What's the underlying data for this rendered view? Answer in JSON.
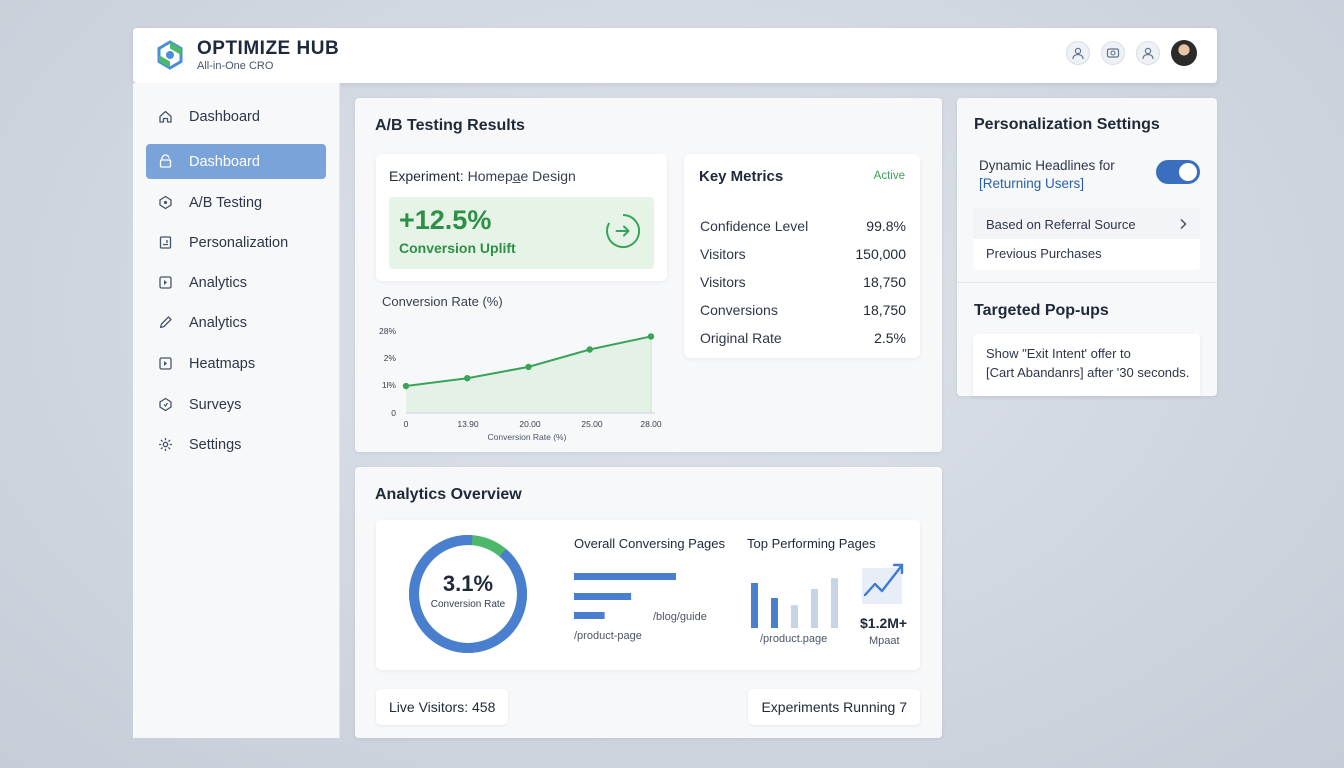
{
  "app": {
    "title": "OPTIMIZE HUB",
    "subtitle": "All-in-One CRO",
    "header_icons": [
      "user-icon",
      "dollar-icon",
      "profile-icon",
      "avatar"
    ]
  },
  "sidebar": {
    "items": [
      {
        "label": "Dashboard",
        "icon": "home-icon",
        "active": false
      },
      {
        "label": "Dashboard",
        "icon": "dashboard-icon",
        "active": true
      },
      {
        "label": "A/B Testing",
        "icon": "ab-testing-icon",
        "active": false
      },
      {
        "label": "Personalization",
        "icon": "personalization-icon",
        "active": false
      },
      {
        "label": "Analytics",
        "icon": "analytics-icon",
        "active": false
      },
      {
        "label": "Analytics",
        "icon": "pencil-icon",
        "active": false
      },
      {
        "label": "Heatmaps",
        "icon": "heatmap-icon",
        "active": false
      },
      {
        "label": "Surveys",
        "icon": "survey-icon",
        "active": false
      },
      {
        "label": "Settings",
        "icon": "gear-icon",
        "active": false
      }
    ]
  },
  "ab_testing": {
    "title": "A/B Testing Results",
    "experiment_label": "Experiment:",
    "experiment_name": "Homepa̲e Design",
    "uplift_value": "+12.5%",
    "uplift_label": "Conversion Uplift",
    "key_metrics": {
      "title": "Key Metrics",
      "status": "Active",
      "rows": [
        {
          "label": "Confidence Level",
          "value": "99.8%"
        },
        {
          "label": "Visitors",
          "value": "150,000"
        },
        {
          "label": "Visitors",
          "value": "18,750"
        },
        {
          "label": "Conversions",
          "value": "18,750"
        },
        {
          "label": "Original Rate",
          "value": "2.5%"
        }
      ]
    }
  },
  "chart_data": {
    "type": "line",
    "title": "Conversion Rate (%)",
    "xlabel": "Conversion Rate (%)",
    "ylabel": "",
    "x_tick_labels": [
      "0",
      "13.90",
      "20.00",
      "25.00",
      "28.00"
    ],
    "y_tick_labels": [
      "0",
      "1l%",
      "2%",
      "28%"
    ],
    "series": [
      {
        "values": [
          0.31,
          0.4,
          0.53,
          0.73,
          0.88
        ]
      }
    ],
    "ylim": [
      0,
      1
    ],
    "grid": false,
    "color": "#3aa35a"
  },
  "personalization": {
    "title": "Personalization Settings",
    "headline_line1": "Dynamic Headlines for",
    "headline_line2": "[Returning Users]",
    "toggle_on": true,
    "option1": "Based on Referral Source",
    "option2": "Previous Purchases",
    "popups_title": "Targeted Pop-ups",
    "popup_line1": "Show \"Exit Intent' offer to",
    "popup_line2": "[Cart Abandanrs] after '30 seconds."
  },
  "analytics": {
    "title": "Analytics Overview",
    "donut_value": "3.1%",
    "donut_label": "Conversion Rate",
    "donut_fraction": 0.9,
    "overall_title": "Overall Conversing Pages",
    "overall_label_right": "/blog/guide",
    "overall_label_bottom": "/product-page",
    "overall_bars": [
      1.0,
      0.56,
      0.3
    ],
    "top_title": "Top Performing Pages",
    "top_label": "/product.page",
    "top_bars": [
      0.75,
      0.5,
      0.38,
      0.65,
      0.83
    ],
    "revenue_value": "$1.2M+",
    "revenue_label": "Mpaat",
    "live_visitors": "Live Visitors: 458",
    "experiments_running": "Experiments Running 7",
    "accent": "#4a7fcf",
    "accent_green": "#4cb86a"
  }
}
